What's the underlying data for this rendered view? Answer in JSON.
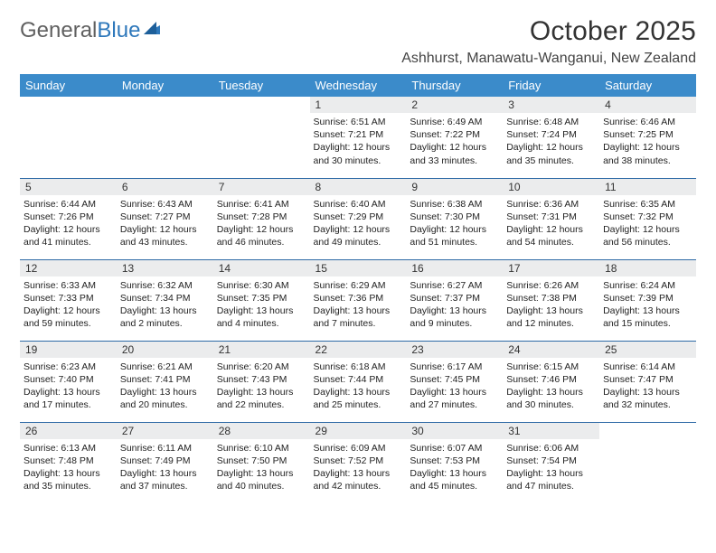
{
  "logo": {
    "general": "General",
    "blue": "Blue"
  },
  "title": "October 2025",
  "location": "Ashhurst, Manawatu-Wanganui, New Zealand",
  "colors": {
    "header_bg": "#3b8bca",
    "header_text": "#ffffff",
    "daynum_bg": "#ebeced",
    "row_border": "#2e6aa6",
    "logo_blue": "#2e78bb",
    "logo_gray": "#606060",
    "body_text": "#222222"
  },
  "weekdays": [
    "Sunday",
    "Monday",
    "Tuesday",
    "Wednesday",
    "Thursday",
    "Friday",
    "Saturday"
  ],
  "weeks": [
    [
      {
        "day": "",
        "sunrise": "",
        "sunset": "",
        "daylight": ""
      },
      {
        "day": "",
        "sunrise": "",
        "sunset": "",
        "daylight": ""
      },
      {
        "day": "",
        "sunrise": "",
        "sunset": "",
        "daylight": ""
      },
      {
        "day": "1",
        "sunrise": "Sunrise: 6:51 AM",
        "sunset": "Sunset: 7:21 PM",
        "daylight": "Daylight: 12 hours and 30 minutes."
      },
      {
        "day": "2",
        "sunrise": "Sunrise: 6:49 AM",
        "sunset": "Sunset: 7:22 PM",
        "daylight": "Daylight: 12 hours and 33 minutes."
      },
      {
        "day": "3",
        "sunrise": "Sunrise: 6:48 AM",
        "sunset": "Sunset: 7:24 PM",
        "daylight": "Daylight: 12 hours and 35 minutes."
      },
      {
        "day": "4",
        "sunrise": "Sunrise: 6:46 AM",
        "sunset": "Sunset: 7:25 PM",
        "daylight": "Daylight: 12 hours and 38 minutes."
      }
    ],
    [
      {
        "day": "5",
        "sunrise": "Sunrise: 6:44 AM",
        "sunset": "Sunset: 7:26 PM",
        "daylight": "Daylight: 12 hours and 41 minutes."
      },
      {
        "day": "6",
        "sunrise": "Sunrise: 6:43 AM",
        "sunset": "Sunset: 7:27 PM",
        "daylight": "Daylight: 12 hours and 43 minutes."
      },
      {
        "day": "7",
        "sunrise": "Sunrise: 6:41 AM",
        "sunset": "Sunset: 7:28 PM",
        "daylight": "Daylight: 12 hours and 46 minutes."
      },
      {
        "day": "8",
        "sunrise": "Sunrise: 6:40 AM",
        "sunset": "Sunset: 7:29 PM",
        "daylight": "Daylight: 12 hours and 49 minutes."
      },
      {
        "day": "9",
        "sunrise": "Sunrise: 6:38 AM",
        "sunset": "Sunset: 7:30 PM",
        "daylight": "Daylight: 12 hours and 51 minutes."
      },
      {
        "day": "10",
        "sunrise": "Sunrise: 6:36 AM",
        "sunset": "Sunset: 7:31 PM",
        "daylight": "Daylight: 12 hours and 54 minutes."
      },
      {
        "day": "11",
        "sunrise": "Sunrise: 6:35 AM",
        "sunset": "Sunset: 7:32 PM",
        "daylight": "Daylight: 12 hours and 56 minutes."
      }
    ],
    [
      {
        "day": "12",
        "sunrise": "Sunrise: 6:33 AM",
        "sunset": "Sunset: 7:33 PM",
        "daylight": "Daylight: 12 hours and 59 minutes."
      },
      {
        "day": "13",
        "sunrise": "Sunrise: 6:32 AM",
        "sunset": "Sunset: 7:34 PM",
        "daylight": "Daylight: 13 hours and 2 minutes."
      },
      {
        "day": "14",
        "sunrise": "Sunrise: 6:30 AM",
        "sunset": "Sunset: 7:35 PM",
        "daylight": "Daylight: 13 hours and 4 minutes."
      },
      {
        "day": "15",
        "sunrise": "Sunrise: 6:29 AM",
        "sunset": "Sunset: 7:36 PM",
        "daylight": "Daylight: 13 hours and 7 minutes."
      },
      {
        "day": "16",
        "sunrise": "Sunrise: 6:27 AM",
        "sunset": "Sunset: 7:37 PM",
        "daylight": "Daylight: 13 hours and 9 minutes."
      },
      {
        "day": "17",
        "sunrise": "Sunrise: 6:26 AM",
        "sunset": "Sunset: 7:38 PM",
        "daylight": "Daylight: 13 hours and 12 minutes."
      },
      {
        "day": "18",
        "sunrise": "Sunrise: 6:24 AM",
        "sunset": "Sunset: 7:39 PM",
        "daylight": "Daylight: 13 hours and 15 minutes."
      }
    ],
    [
      {
        "day": "19",
        "sunrise": "Sunrise: 6:23 AM",
        "sunset": "Sunset: 7:40 PM",
        "daylight": "Daylight: 13 hours and 17 minutes."
      },
      {
        "day": "20",
        "sunrise": "Sunrise: 6:21 AM",
        "sunset": "Sunset: 7:41 PM",
        "daylight": "Daylight: 13 hours and 20 minutes."
      },
      {
        "day": "21",
        "sunrise": "Sunrise: 6:20 AM",
        "sunset": "Sunset: 7:43 PM",
        "daylight": "Daylight: 13 hours and 22 minutes."
      },
      {
        "day": "22",
        "sunrise": "Sunrise: 6:18 AM",
        "sunset": "Sunset: 7:44 PM",
        "daylight": "Daylight: 13 hours and 25 minutes."
      },
      {
        "day": "23",
        "sunrise": "Sunrise: 6:17 AM",
        "sunset": "Sunset: 7:45 PM",
        "daylight": "Daylight: 13 hours and 27 minutes."
      },
      {
        "day": "24",
        "sunrise": "Sunrise: 6:15 AM",
        "sunset": "Sunset: 7:46 PM",
        "daylight": "Daylight: 13 hours and 30 minutes."
      },
      {
        "day": "25",
        "sunrise": "Sunrise: 6:14 AM",
        "sunset": "Sunset: 7:47 PM",
        "daylight": "Daylight: 13 hours and 32 minutes."
      }
    ],
    [
      {
        "day": "26",
        "sunrise": "Sunrise: 6:13 AM",
        "sunset": "Sunset: 7:48 PM",
        "daylight": "Daylight: 13 hours and 35 minutes."
      },
      {
        "day": "27",
        "sunrise": "Sunrise: 6:11 AM",
        "sunset": "Sunset: 7:49 PM",
        "daylight": "Daylight: 13 hours and 37 minutes."
      },
      {
        "day": "28",
        "sunrise": "Sunrise: 6:10 AM",
        "sunset": "Sunset: 7:50 PM",
        "daylight": "Daylight: 13 hours and 40 minutes."
      },
      {
        "day": "29",
        "sunrise": "Sunrise: 6:09 AM",
        "sunset": "Sunset: 7:52 PM",
        "daylight": "Daylight: 13 hours and 42 minutes."
      },
      {
        "day": "30",
        "sunrise": "Sunrise: 6:07 AM",
        "sunset": "Sunset: 7:53 PM",
        "daylight": "Daylight: 13 hours and 45 minutes."
      },
      {
        "day": "31",
        "sunrise": "Sunrise: 6:06 AM",
        "sunset": "Sunset: 7:54 PM",
        "daylight": "Daylight: 13 hours and 47 minutes."
      },
      {
        "day": "",
        "sunrise": "",
        "sunset": "",
        "daylight": ""
      }
    ]
  ]
}
